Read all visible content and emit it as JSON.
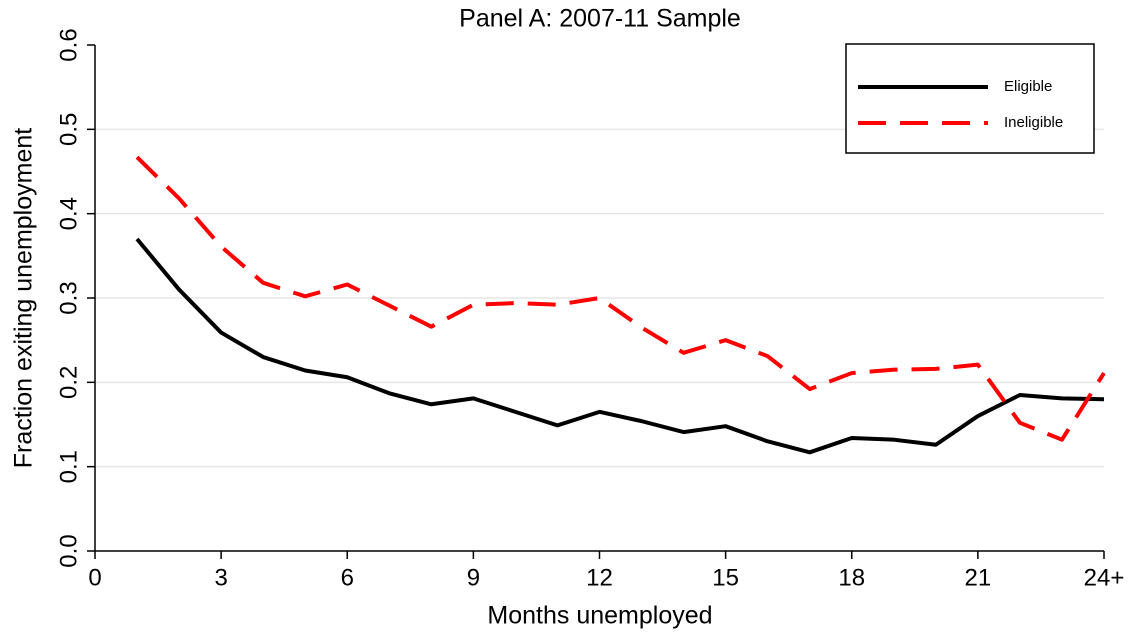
{
  "chart_data": {
    "type": "line",
    "title": "Panel A:  2007-11 Sample",
    "x_label": "Months unemployed",
    "y_label": "Fraction exiting unemployment",
    "x": [
      1,
      2,
      3,
      4,
      5,
      6,
      7,
      8,
      9,
      10,
      11,
      12,
      13,
      14,
      15,
      16,
      17,
      18,
      19,
      20,
      21,
      22,
      23,
      24
    ],
    "series": [
      {
        "name": "Eligible",
        "color": "#000000",
        "dash": "solid",
        "values": [
          0.37,
          0.31,
          0.259,
          0.23,
          0.214,
          0.206,
          0.187,
          0.174,
          0.181,
          0.165,
          0.149,
          0.165,
          0.154,
          0.141,
          0.148,
          0.13,
          0.117,
          0.134,
          0.132,
          0.126,
          0.16,
          0.185,
          0.181,
          0.18
        ]
      },
      {
        "name": "Ineligible",
        "color": "#ff0000",
        "dash": "dashed",
        "values": [
          0.467,
          0.418,
          0.361,
          0.318,
          0.302,
          0.316,
          0.291,
          0.266,
          0.292,
          0.294,
          0.292,
          0.3,
          0.265,
          0.235,
          0.25,
          0.231,
          0.192,
          0.211,
          0.215,
          0.216,
          0.221,
          0.152,
          0.132,
          0.211
        ]
      }
    ],
    "xlim": [
      0,
      24
    ],
    "xticks": [
      0,
      3,
      6,
      9,
      12,
      15,
      18,
      21,
      {
        "value": 24,
        "label": "24+"
      }
    ],
    "ylim": [
      0,
      0.6
    ],
    "yticks": [
      {
        "value": 0,
        "label": "0.0"
      },
      0.1,
      0.2,
      0.3,
      0.4,
      0.5,
      0.6
    ],
    "grid": true,
    "legend": "top-right"
  }
}
